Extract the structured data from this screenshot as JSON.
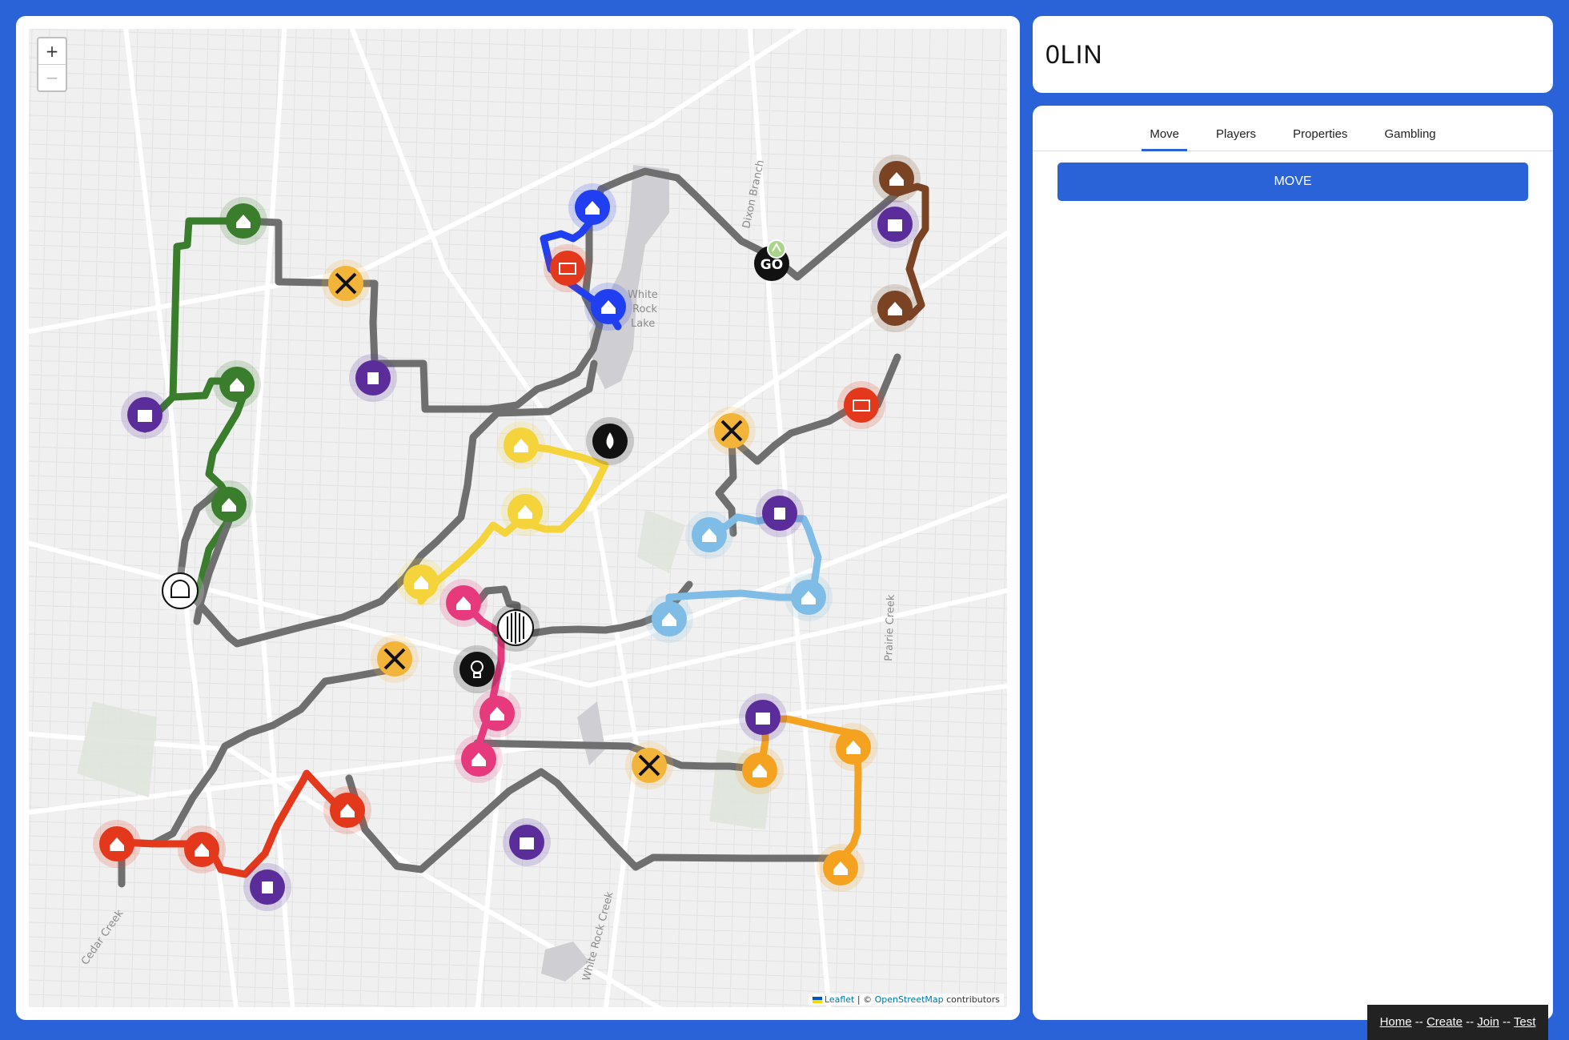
{
  "app": {
    "title": "0LIN"
  },
  "map": {
    "zoom_in": "+",
    "zoom_out": "−",
    "labels": [
      "White",
      "Rock",
      "Lake",
      "Dixon Branch",
      "Prairie Creek",
      "White Rock Creek",
      "Cedar Creek"
    ],
    "attribution": {
      "leaflet": "Leaflet",
      "separator": " | © ",
      "osm": "OpenStreetMap",
      "suffix": " contributors"
    },
    "go_label": "GO",
    "colors": {
      "green": "#3a7d2c",
      "gray": "#6f6f6f",
      "blue": "#1f3ff0",
      "brown": "#7a4323",
      "purple": "#5b2d9a",
      "red": "#e4381c",
      "yellow": "#f5d33a",
      "lightblue": "#7fbde6",
      "pink": "#e73a7d",
      "orange": "#f4a21f",
      "railroad": "#f3b43a"
    }
  },
  "tabs": [
    {
      "label": "Move",
      "active": true
    },
    {
      "label": "Players",
      "active": false
    },
    {
      "label": "Properties",
      "active": false
    },
    {
      "label": "Gambling",
      "active": false
    }
  ],
  "move_button": "MOVE",
  "footer": {
    "home": "Home",
    "create": "Create",
    "join": "Join",
    "test": "Test",
    "sep": " -- "
  }
}
